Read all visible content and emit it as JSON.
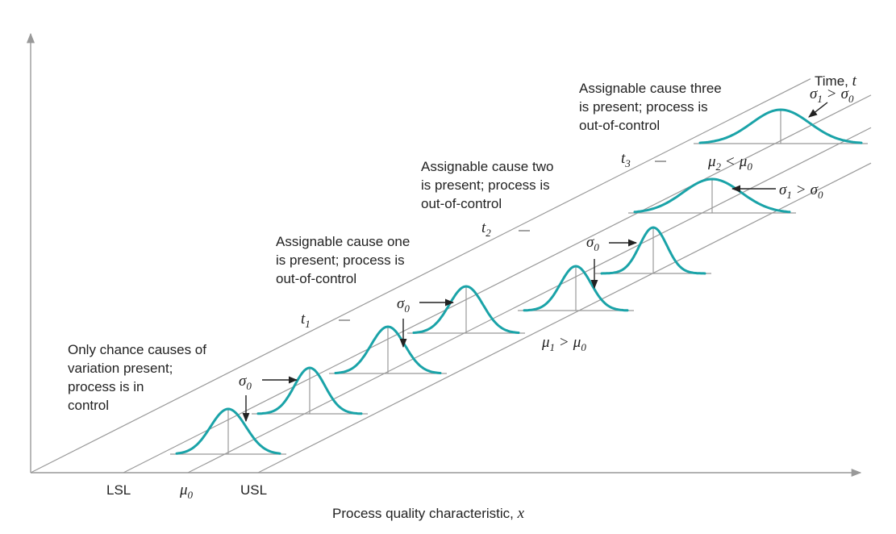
{
  "axes": {
    "x_label": "Process quality characteristic,",
    "x_var": "x",
    "t_label": "Time,",
    "t_var": "t"
  },
  "spec_limits": {
    "lsl": "LSL",
    "usl": "USL"
  },
  "means": {
    "mu0": "μ",
    "mu0_sub": "0",
    "mu1_rel": "μ",
    "mu1_rel_sub": "1",
    "mu1_rel_op": ">",
    "mu1_rel_rhs": "μ",
    "mu1_rel_rhs_sub": "0",
    "mu2_rel": "μ",
    "mu2_rel_sub": "2",
    "mu2_rel_op": "<",
    "mu2_rel_rhs": "μ",
    "mu2_rel_rhs_sub": "0"
  },
  "sigma": {
    "sym": "σ",
    "s0_sub": "0",
    "s1_sub": "1",
    "op_gt": ">"
  },
  "time_points": [
    {
      "sym": "t",
      "sub": "1"
    },
    {
      "sym": "t",
      "sub": "2"
    },
    {
      "sym": "t",
      "sub": "3"
    }
  ],
  "annotations": {
    "chance": [
      "Only chance causes of",
      "variation present;",
      "process is in",
      "control"
    ],
    "cause_one": [
      "Assignable cause one",
      "is present; process is",
      "out-of-control"
    ],
    "cause_two": [
      "Assignable cause two",
      "is present; process is",
      "out-of-control"
    ],
    "cause_three": [
      "Assignable cause three",
      "is present; process is",
      "out-of-control"
    ]
  },
  "colors": {
    "curve": "#1aa3a8",
    "axis": "#999999",
    "text": "#222222",
    "arrow": "#222222"
  }
}
